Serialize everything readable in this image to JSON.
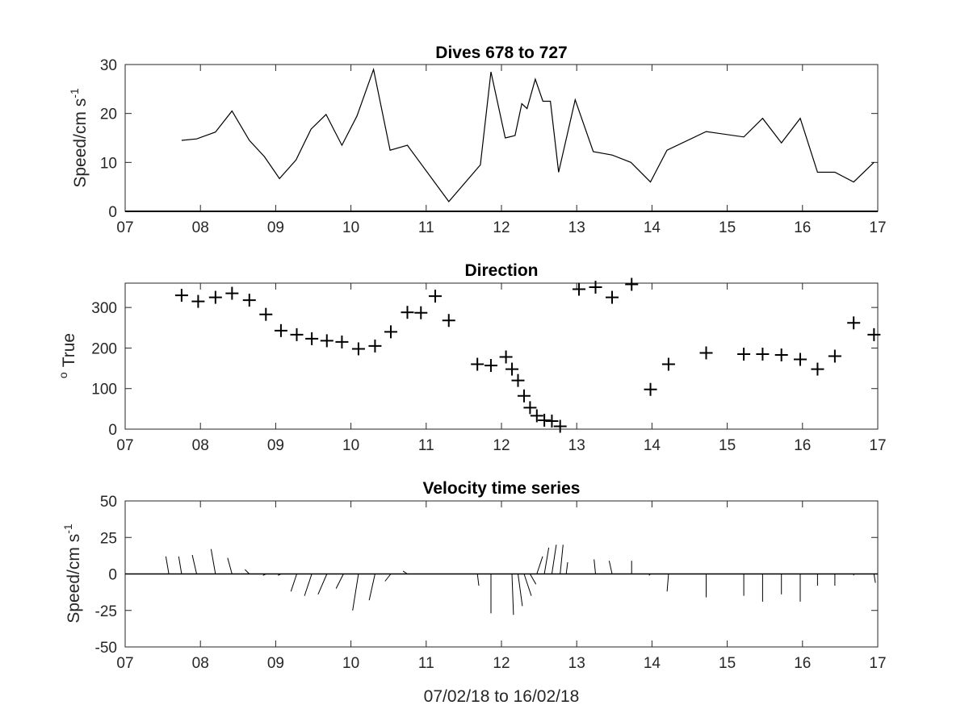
{
  "chart_data": [
    {
      "type": "line",
      "title": "Dives 678 to 727",
      "ylabel": "Speed/cm s",
      "ylabel_sup": "-1",
      "xlim": [
        7,
        17
      ],
      "ylim": [
        0,
        30
      ],
      "xticks": [
        "07",
        "08",
        "09",
        "10",
        "11",
        "12",
        "13",
        "14",
        "15",
        "16",
        "17"
      ],
      "yticks": [
        "0",
        "10",
        "20",
        "30"
      ],
      "series": [
        {
          "x": [
            7.75,
            7.95,
            8.2,
            8.42,
            8.65,
            8.85,
            9.05,
            9.27,
            9.47,
            9.67,
            9.88,
            10.08,
            10.3,
            10.52,
            10.75,
            11.3,
            11.72,
            11.86,
            12.05,
            12.18,
            12.27,
            12.34,
            12.45,
            12.55,
            12.65,
            12.76,
            12.98,
            13.22,
            13.47,
            13.72,
            13.98,
            14.2,
            14.72,
            15.22,
            15.47,
            15.72,
            15.97,
            16.2,
            16.43,
            16.68,
            16.95
          ],
          "y": [
            14.5,
            14.8,
            16.2,
            20.5,
            14.5,
            11.2,
            6.7,
            10.5,
            16.8,
            19.8,
            13.5,
            19.5,
            29,
            12.5,
            13.5,
            2,
            9.5,
            28.5,
            15,
            15.5,
            22,
            21,
            27,
            22.5,
            22.5,
            8,
            22.8,
            12.2,
            11.5,
            10,
            6,
            12.5,
            16.3,
            15.2,
            19,
            14,
            19,
            8,
            8,
            6,
            10
          ]
        }
      ]
    },
    {
      "type": "scatter",
      "title": "Direction",
      "ylabel": "True",
      "ylabel_sup": "o",
      "xlim": [
        7,
        17
      ],
      "ylim": [
        0,
        360
      ],
      "xticks": [
        "07",
        "08",
        "09",
        "10",
        "11",
        "12",
        "13",
        "14",
        "15",
        "16",
        "17"
      ],
      "yticks": [
        "0",
        "100",
        "200",
        "300"
      ],
      "series": [
        {
          "marker": "+",
          "x": [
            7.75,
            7.97,
            8.2,
            8.42,
            8.65,
            8.87,
            9.07,
            9.28,
            9.48,
            9.68,
            9.88,
            10.1,
            10.32,
            10.53,
            10.75,
            10.93,
            11.12,
            11.3,
            11.68,
            11.86,
            12.06,
            12.14,
            12.22,
            12.3,
            12.38,
            12.47,
            12.57,
            12.67,
            12.78,
            13.03,
            13.25,
            13.47,
            13.73,
            13.98,
            14.22,
            14.72,
            15.22,
            15.47,
            15.72,
            15.97,
            16.2,
            16.43,
            16.68,
            16.95
          ],
          "y": [
            330,
            315,
            325,
            335,
            318,
            283,
            243,
            233,
            223,
            218,
            215,
            198,
            205,
            240,
            288,
            287,
            328,
            268,
            160,
            157,
            178,
            148,
            120,
            82,
            53,
            33,
            22,
            20,
            7,
            345,
            350,
            325,
            357,
            98,
            160,
            188,
            185,
            185,
            183,
            172,
            148,
            180,
            262,
            233
          ]
        }
      ]
    },
    {
      "type": "line",
      "title": "Velocity time series",
      "ylabel": "Speed/cm s",
      "ylabel_sup": "-1",
      "xlabel": "07/02/18 to 16/02/18",
      "xlim": [
        7,
        17
      ],
      "ylim": [
        -50,
        50
      ],
      "xticks": [
        "07",
        "08",
        "09",
        "10",
        "11",
        "12",
        "13",
        "14",
        "15",
        "16",
        "17"
      ],
      "yticks": [
        "-50",
        "-25",
        "0",
        "25",
        "50"
      ],
      "sticks": {
        "x": [
          7.58,
          7.75,
          7.95,
          8.2,
          8.42,
          8.65,
          8.87,
          9.07,
          9.28,
          9.48,
          9.68,
          9.9,
          10.1,
          10.32,
          10.53,
          10.75,
          11.12,
          11.68,
          11.86,
          12.06,
          12.14,
          12.22,
          12.3,
          12.38,
          12.47,
          12.57,
          12.67,
          12.78,
          12.86,
          13.25,
          13.47,
          13.73,
          13.98,
          14.22,
          14.72,
          15.22,
          15.47,
          15.72,
          15.97,
          16.2,
          16.43,
          16.68,
          16.95
        ],
        "u": [
          -2,
          -2,
          -3,
          -3,
          -3,
          -3,
          -2,
          -2,
          -4,
          -5,
          -6,
          -5,
          -4,
          -4,
          -4,
          -3,
          -1,
          1,
          0,
          -2,
          1,
          3,
          5,
          4,
          4,
          3,
          3,
          2,
          1,
          -1,
          -2,
          0,
          -1,
          -1,
          0,
          0,
          0,
          0,
          0,
          0,
          0,
          0,
          1
        ],
        "v": [
          12,
          12,
          13,
          17,
          11,
          3,
          -1,
          -1,
          -12,
          -15,
          -14,
          -10,
          -25,
          -18,
          -5,
          2,
          0,
          -8,
          -27,
          0,
          -28,
          -22,
          -15,
          -7,
          12,
          18,
          20,
          20,
          8,
          10,
          9,
          9,
          -1,
          -12,
          -16,
          -15,
          -19,
          -14,
          -19,
          -8,
          -8,
          -1,
          -6
        ]
      }
    }
  ]
}
